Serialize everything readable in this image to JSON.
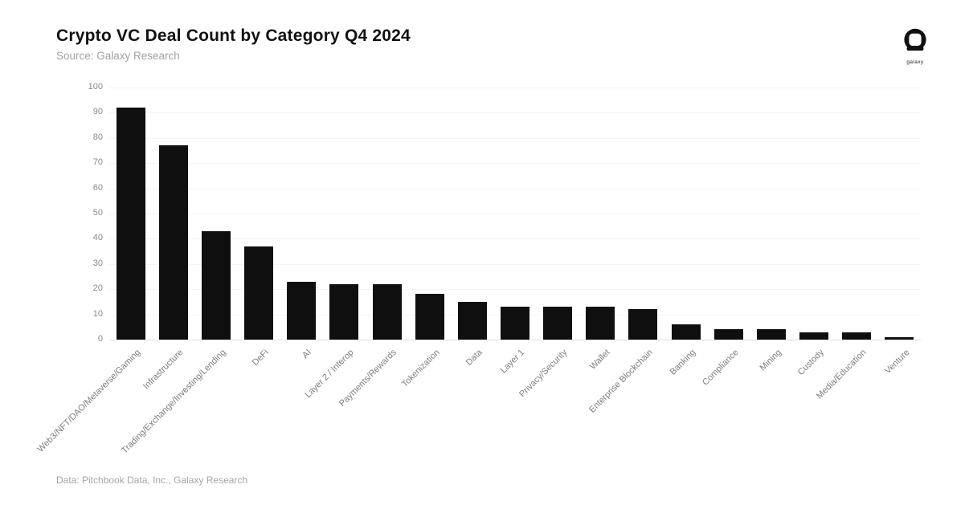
{
  "header": {
    "title": "Crypto VC Deal Count by Category Q4 2024",
    "subtitle": "Source: Galaxy Research",
    "logo_label": "galaxy"
  },
  "footer": {
    "attribution": "Data: Pitchbook Data, Inc., Galaxy Research"
  },
  "colors": {
    "background": "#ffffff",
    "bar": "#0f0f0f",
    "title_text": "#111111",
    "muted_text": "#a2a2a2",
    "axis_text": "#8a8a8a",
    "gridline": "#f4f4f4",
    "baseline": "#dedede"
  },
  "chart_data": {
    "type": "bar",
    "title": "Crypto VC Deal Count by Category Q4 2024",
    "subtitle": "Source: Galaxy Research",
    "categories": [
      "Web3/NFT/DAO/Metaverse/Gaming",
      "Infrastructure",
      "Trading/Exchange/Investing/Lending",
      "DeFi",
      "AI",
      "Layer 2 / Interop",
      "Payments/Rewards",
      "Tokenization",
      "Data",
      "Layer 1",
      "Privacy/Security",
      "Wallet",
      "Enterprise Blockchain",
      "Banking",
      "Compliance",
      "Mining",
      "Custody",
      "Media/Education",
      "Venture"
    ],
    "values": [
      92,
      77,
      43,
      37,
      23,
      22,
      22,
      18,
      15,
      13,
      13,
      13,
      12,
      6,
      4,
      4,
      3,
      3,
      1
    ],
    "xlabel": "",
    "ylabel": "",
    "ylim": [
      0,
      100
    ],
    "yticks": [
      0,
      10,
      20,
      30,
      40,
      50,
      60,
      70,
      80,
      90,
      100
    ],
    "grid": true,
    "legend": false,
    "bar_color": "#0f0f0f",
    "x_tick_rotation_deg": 45
  }
}
